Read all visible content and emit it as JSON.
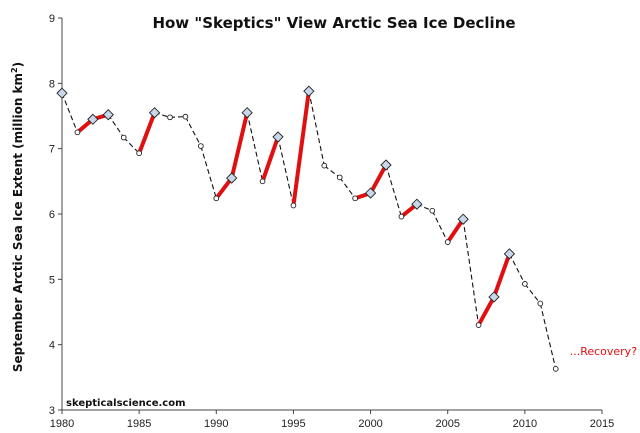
{
  "chart_data": {
    "type": "line",
    "title": "How \"Skeptics\" View Arctic Sea Ice Decline",
    "ylabel": "September Arctic Sea Ice Extent (million km",
    "ylabel_sup": "2",
    "ylabel_tail": ")",
    "xlabel": "",
    "xlim": [
      1980,
      2015
    ],
    "ylim": [
      3,
      9
    ],
    "x_ticks": [
      "1980",
      "1985",
      "1990",
      "1995",
      "2000",
      "2005",
      "2010",
      "2015"
    ],
    "y_ticks": [
      "3",
      "4",
      "5",
      "6",
      "7",
      "8",
      "9"
    ],
    "grid": false,
    "annotation": "...Recovery?",
    "watermark": "skepticalscience.com",
    "colors": {
      "series_line": "#111111",
      "recovery_segments": "#e01010",
      "marker_fill": "#c8d8ea",
      "annotation": "#e01010"
    },
    "series": [
      {
        "x": [
          1980,
          1981,
          1982,
          1983,
          1984,
          1985,
          1986,
          1987,
          1988,
          1989,
          1990,
          1991,
          1992,
          1993,
          1994,
          1995,
          1996,
          1997,
          1998,
          1999,
          2000,
          2001,
          2002,
          2003,
          2004,
          2005,
          2006,
          2007,
          2008,
          2009,
          2010,
          2011,
          2012
        ],
        "values": [
          7.85,
          7.25,
          7.45,
          7.52,
          7.17,
          6.93,
          7.55,
          7.48,
          7.49,
          7.04,
          6.24,
          6.55,
          7.55,
          6.5,
          7.18,
          6.13,
          7.88,
          6.74,
          6.56,
          6.24,
          6.32,
          6.75,
          5.96,
          6.15,
          6.05,
          5.57,
          5.92,
          4.3,
          4.73,
          5.39,
          4.93,
          4.63,
          3.63
        ]
      }
    ],
    "highlighted_ranges": [
      [
        1981,
        1983
      ],
      [
        1985,
        1986
      ],
      [
        1990,
        1992
      ],
      [
        1993,
        1994
      ],
      [
        1995,
        1996
      ],
      [
        1999,
        2001
      ],
      [
        2002,
        2003
      ],
      [
        2005,
        2006
      ],
      [
        2007,
        2009
      ]
    ]
  }
}
